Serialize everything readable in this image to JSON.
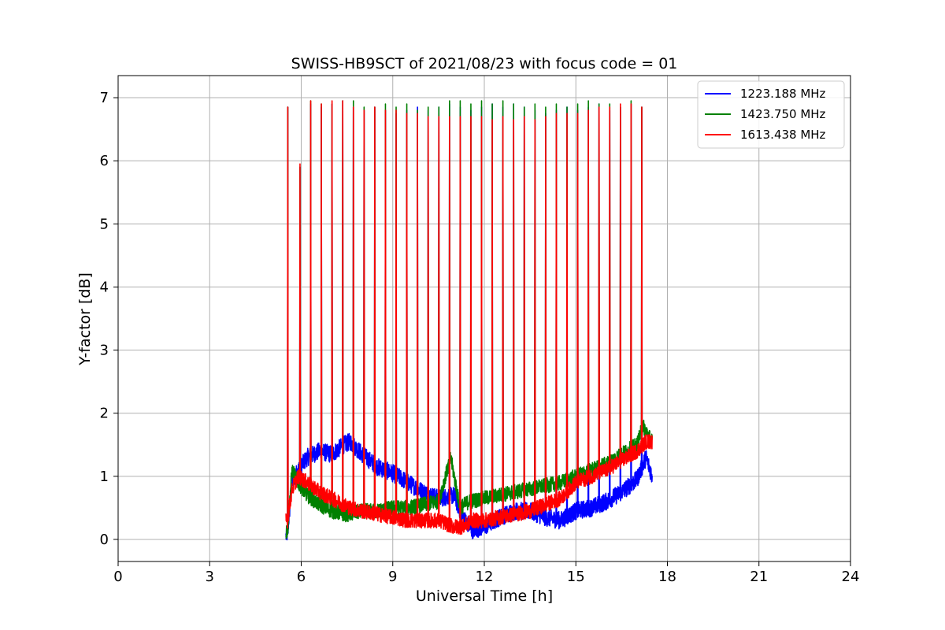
{
  "chart_data": {
    "type": "line",
    "title": "SWISS-HB9SCT of 2021/08/23 with focus code = 01",
    "xlabel": "Universal Time [h]",
    "ylabel": "Y-factor [dB]",
    "xlim": [
      0,
      24
    ],
    "ylim": [
      -0.35,
      7.35
    ],
    "xticks": [
      0,
      3,
      6,
      9,
      12,
      15,
      18,
      21,
      24
    ],
    "yticks": [
      0,
      1,
      2,
      3,
      4,
      5,
      6,
      7
    ],
    "grid": true,
    "legend_position": "top-right",
    "peak_times": [
      5.55,
      5.95,
      6.3,
      6.65,
      7.0,
      7.35,
      7.7,
      8.05,
      8.4,
      8.75,
      9.1,
      9.45,
      9.8,
      10.15,
      10.5,
      10.85,
      11.2,
      11.55,
      11.9,
      12.25,
      12.6,
      12.95,
      13.3,
      13.65,
      14.0,
      14.35,
      14.7,
      15.05,
      15.4,
      15.75,
      16.1,
      16.45,
      16.8,
      17.15
    ],
    "series": [
      {
        "name": "1223.188 MHz",
        "color": "#0000ff",
        "x": [
          5.5,
          5.55,
          5.7,
          5.9,
          6.2,
          6.6,
          7.0,
          7.4,
          7.6,
          8.0,
          8.5,
          9.0,
          9.5,
          10.0,
          10.5,
          11.0,
          11.3,
          11.6,
          12.0,
          12.5,
          13.0,
          13.5,
          14.0,
          14.5,
          15.0,
          15.5,
          16.0,
          16.5,
          17.0,
          17.3,
          17.5
        ],
        "baseline": [
          0.05,
          0.1,
          0.9,
          1.1,
          1.3,
          1.4,
          1.35,
          1.5,
          1.55,
          1.35,
          1.15,
          1.05,
          0.9,
          0.75,
          0.65,
          0.7,
          0.35,
          0.15,
          0.2,
          0.35,
          0.45,
          0.45,
          0.35,
          0.3,
          0.45,
          0.5,
          0.6,
          0.75,
          0.95,
          1.3,
          1.0
        ],
        "noise": 0.14,
        "peaks": [
          6.85,
          5.9,
          6.9,
          6.85,
          6.9,
          6.95,
          6.85,
          6.8,
          6.85,
          6.8,
          6.75,
          6.8,
          6.85,
          6.8,
          6.85,
          6.9,
          6.85,
          6.8,
          6.85,
          6.9,
          6.85,
          6.9,
          6.85,
          6.8,
          6.75,
          6.8,
          6.85,
          6.8,
          6.85,
          6.9,
          6.8,
          6.85,
          6.9,
          6.85
        ]
      },
      {
        "name": "1423.750 MHz",
        "color": "#008000",
        "x": [
          5.5,
          5.55,
          5.7,
          5.9,
          6.2,
          6.6,
          7.0,
          7.4,
          7.6,
          8.0,
          8.5,
          9.0,
          9.5,
          10.0,
          10.5,
          10.9,
          11.2,
          11.5,
          12.0,
          12.5,
          13.0,
          13.5,
          14.0,
          14.5,
          15.0,
          15.5,
          16.0,
          16.5,
          17.0,
          17.2,
          17.5
        ],
        "baseline": [
          0.1,
          0.15,
          1.1,
          0.9,
          0.7,
          0.55,
          0.45,
          0.4,
          0.4,
          0.45,
          0.45,
          0.5,
          0.5,
          0.55,
          0.6,
          1.3,
          0.5,
          0.6,
          0.65,
          0.7,
          0.75,
          0.8,
          0.85,
          0.9,
          1.0,
          1.1,
          1.2,
          1.35,
          1.5,
          1.8,
          1.55
        ],
        "noise": 0.12,
        "peaks": [
          6.85,
          5.9,
          6.95,
          6.9,
          6.9,
          6.95,
          6.95,
          6.85,
          6.85,
          6.9,
          6.85,
          6.9,
          6.8,
          6.85,
          6.85,
          6.95,
          6.95,
          6.9,
          6.95,
          6.9,
          6.95,
          6.9,
          6.85,
          6.9,
          6.85,
          6.9,
          6.85,
          6.9,
          6.95,
          6.9,
          6.9,
          6.85,
          6.95,
          6.85
        ]
      },
      {
        "name": "1613.438 MHz",
        "color": "#ff0000",
        "x": [
          5.5,
          5.55,
          5.7,
          5.9,
          6.2,
          6.6,
          7.0,
          7.4,
          7.6,
          8.0,
          8.5,
          9.0,
          9.5,
          10.0,
          10.5,
          11.0,
          11.3,
          11.6,
          12.0,
          12.5,
          13.0,
          13.5,
          14.0,
          14.5,
          15.0,
          15.5,
          16.0,
          16.5,
          17.0,
          17.3,
          17.5
        ],
        "baseline": [
          0.3,
          0.3,
          0.8,
          1.0,
          0.9,
          0.75,
          0.65,
          0.55,
          0.5,
          0.45,
          0.4,
          0.35,
          0.3,
          0.3,
          0.3,
          0.2,
          0.2,
          0.3,
          0.3,
          0.35,
          0.4,
          0.45,
          0.55,
          0.65,
          0.9,
          1.0,
          1.1,
          1.25,
          1.4,
          1.55,
          1.55
        ],
        "noise": 0.12,
        "peaks": [
          6.85,
          5.95,
          6.95,
          6.9,
          6.95,
          6.95,
          6.85,
          6.8,
          6.85,
          6.8,
          6.8,
          6.75,
          6.75,
          6.7,
          6.7,
          6.7,
          6.7,
          6.7,
          6.7,
          6.65,
          6.7,
          6.65,
          6.7,
          6.65,
          6.7,
          6.75,
          6.75,
          6.75,
          6.8,
          6.85,
          6.85,
          6.9,
          6.9,
          6.85
        ]
      }
    ]
  }
}
